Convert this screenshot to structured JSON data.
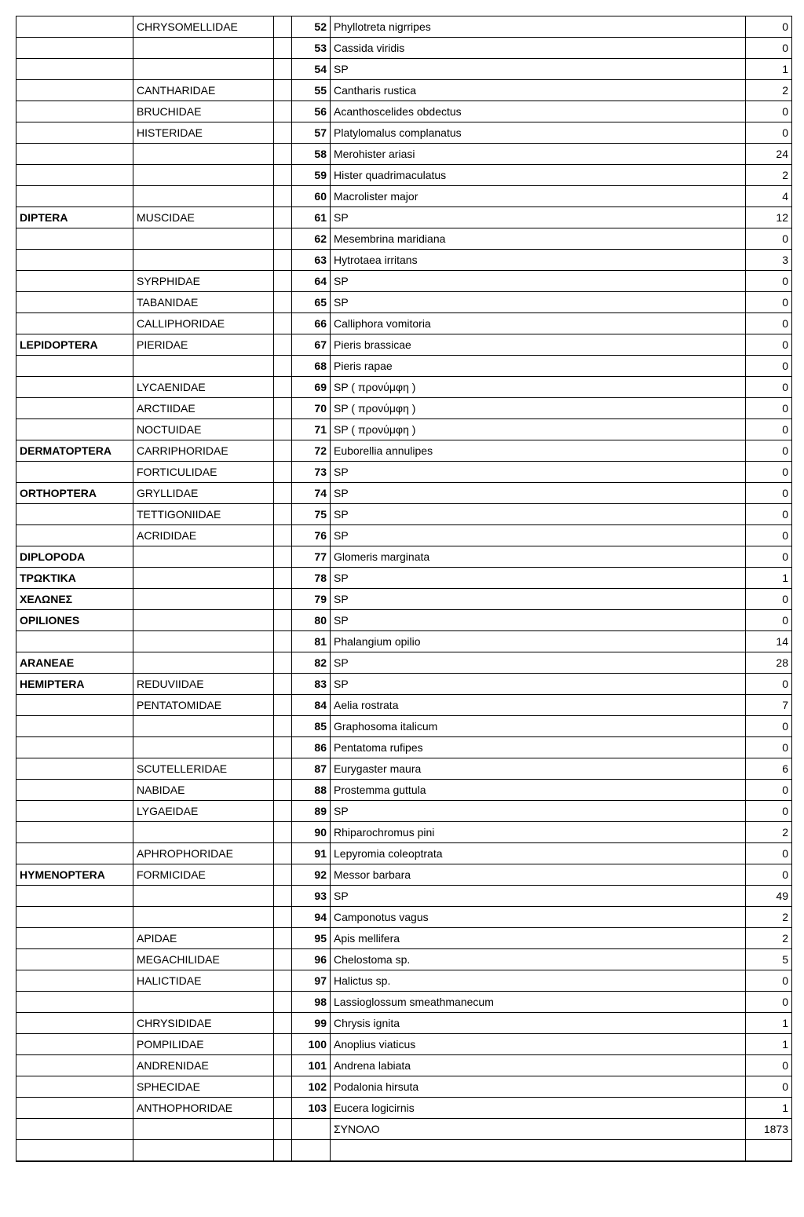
{
  "table": {
    "columns": [
      "order",
      "family",
      "sep",
      "num",
      "species",
      "count"
    ],
    "col_classes": [
      "order",
      "family",
      "sep",
      "num",
      "species",
      "count"
    ],
    "rows": [
      [
        "",
        "CHRYSOMELLIDAE",
        "",
        "52",
        "Phyllotreta nigrripes",
        "0"
      ],
      [
        "",
        "",
        "",
        "53",
        "Cassida viridis",
        "0"
      ],
      [
        "",
        "",
        "",
        "54",
        "SP",
        "1"
      ],
      [
        "",
        "CANTHARIDAE",
        "",
        "55",
        "Cantharis rustica",
        "2"
      ],
      [
        "",
        "BRUCHIDAE",
        "",
        "56",
        "Acanthoscelides obdectus",
        "0"
      ],
      [
        "",
        "HISTERIDAE",
        "",
        "57",
        "Platylomalus complanatus",
        "0"
      ],
      [
        "",
        "",
        "",
        "58",
        "Merohister ariasi",
        "24"
      ],
      [
        "",
        "",
        "",
        "59",
        "Hister quadrimaculatus",
        "2"
      ],
      [
        "",
        "",
        "",
        "60",
        "Macrolister major",
        "4"
      ],
      [
        "DIPTERA",
        "MUSCIDAE",
        "",
        "61",
        "SP",
        "12"
      ],
      [
        "",
        "",
        "",
        "62",
        "Mesembrina maridiana",
        "0"
      ],
      [
        "",
        "",
        "",
        "63",
        "Hytrotaea irritans",
        "3"
      ],
      [
        "",
        "SYRPHIDAE",
        "",
        "64",
        "SP",
        "0"
      ],
      [
        "",
        "TABANIDAE",
        "",
        "65",
        "SP",
        "0"
      ],
      [
        "",
        "CALLIPHORIDAE",
        "",
        "66",
        "Calliphora vomitoria",
        "0"
      ],
      [
        "LEPIDOPTERA",
        "PIERIDAE",
        "",
        "67",
        "Pieris brassicae",
        "0"
      ],
      [
        "",
        "",
        "",
        "68",
        "Pieris rapae",
        "0"
      ],
      [
        "",
        "LYCAENIDAE",
        "",
        "69",
        "SP ( προνύμφη )",
        "0"
      ],
      [
        "",
        "ARCTIIDAE",
        "",
        "70",
        "SP ( προνύμφη )",
        "0"
      ],
      [
        "",
        "NOCTUIDAE",
        "",
        "71",
        "SP ( προνύμφη )",
        "0"
      ],
      [
        "DERMATOPTERA",
        "CARRIPHORIDAE",
        "",
        "72",
        "Euborellia annulipes",
        "0"
      ],
      [
        "",
        "FORTICULIDAE",
        "",
        "73",
        "SP",
        "0"
      ],
      [
        "ORTHOPTERA",
        "GRYLLIDAE",
        "",
        "74",
        "SP",
        "0"
      ],
      [
        "",
        "TETTIGONIIDAE",
        "",
        "75",
        "SP",
        "0"
      ],
      [
        "",
        "ACRIDIDAE",
        "",
        "76",
        "SP",
        "0"
      ],
      [
        "DIPLOPODA",
        "",
        "",
        "77",
        "Glomeris marginata",
        "0"
      ],
      [
        "ΤΡΩΚΤΙΚΑ",
        "",
        "",
        "78",
        "SP",
        "1"
      ],
      [
        "ΧΕΛΩΝΕΣ",
        "",
        "",
        "79",
        "SP",
        "0"
      ],
      [
        "OPILIONES",
        "",
        "",
        "80",
        "SP",
        "0"
      ],
      [
        "",
        "",
        "",
        "81",
        "Phalangium opilio",
        "14"
      ],
      [
        "ARANEAE",
        "",
        "",
        "82",
        "SP",
        "28"
      ],
      [
        "HEMIPTERA",
        "REDUVIIDAE",
        "",
        "83",
        "SP",
        "0"
      ],
      [
        "",
        "PENTATOMIDAE",
        "",
        "84",
        "Aelia rostrata",
        "7"
      ],
      [
        "",
        "",
        "",
        "85",
        "Graphosoma italicum",
        "0"
      ],
      [
        "",
        "",
        "",
        "86",
        "Pentatoma rufipes",
        "0"
      ],
      [
        "",
        "SCUTELLERIDAE",
        "",
        "87",
        "Eurygaster maura",
        "6"
      ],
      [
        "",
        "NABIDAE",
        "",
        "88",
        "Prostemma guttula",
        "0"
      ],
      [
        "",
        "LYGAEIDAE",
        "",
        "89",
        "SP",
        "0"
      ],
      [
        "",
        "",
        "",
        "90",
        "Rhiparochromus pini",
        "2"
      ],
      [
        "",
        "APHROPHORIDAE",
        "",
        "91",
        "Lepyromia coleoptrata",
        "0"
      ],
      [
        "HYMENOPTERA",
        "FORMICIDAE",
        "",
        "92",
        "Messor barbara",
        "0"
      ],
      [
        "",
        "",
        "",
        "93",
        "SP",
        "49"
      ],
      [
        "",
        "",
        "",
        "94",
        "Camponotus vagus",
        "2"
      ],
      [
        "",
        "APIDAE",
        "",
        "95",
        "Apis mellifera",
        "2"
      ],
      [
        "",
        "MEGACHILIDAE",
        "",
        "96",
        "Chelostoma sp.",
        "5"
      ],
      [
        "",
        "HALICTIDAE",
        "",
        "97",
        "Halictus sp.",
        "0"
      ],
      [
        "",
        "",
        "",
        "98",
        "Lassioglossum smeathmanecum",
        "0"
      ],
      [
        "",
        "CHRYSIDIDAE",
        "",
        "99",
        "Chrysis ignita",
        "1"
      ],
      [
        "",
        "POMPILIDAE",
        "",
        "100",
        "Anoplius viaticus",
        "1"
      ],
      [
        "",
        "ANDRENIDAE",
        "",
        "101",
        "Andrena labiata",
        "0"
      ],
      [
        "",
        "SPHECIDAE",
        "",
        "102",
        "Podalonia hirsuta",
        "0"
      ],
      [
        "",
        "ANTHOPHORIDAE",
        "",
        "103",
        "Eucera logicirnis",
        "1"
      ],
      [
        "",
        "",
        "",
        "",
        "ΣΥΝΟΛΟ",
        "1873"
      ],
      [
        "",
        "",
        "",
        "",
        "",
        ""
      ]
    ]
  }
}
